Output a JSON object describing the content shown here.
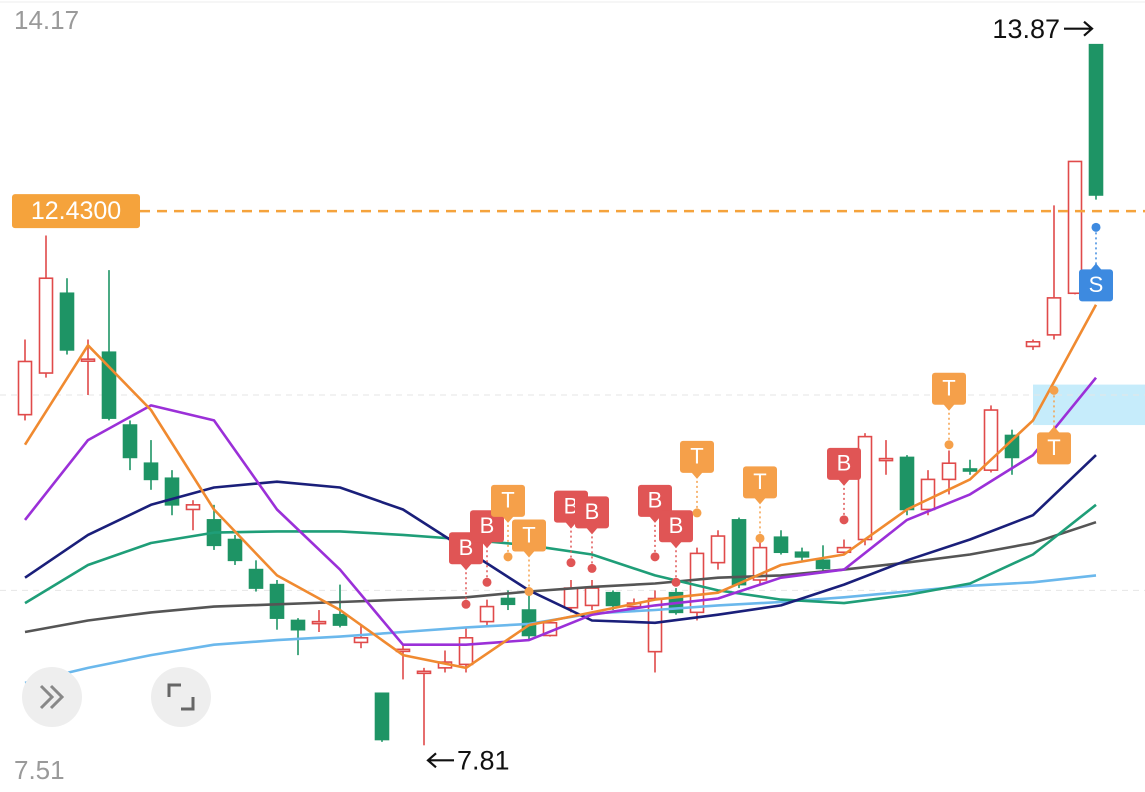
{
  "chart_data": {
    "type": "candlestick",
    "ylim": [
      7.51,
      14.17
    ],
    "up_color": "#e04a4a",
    "down_color": "#1e9465",
    "candles": {
      "open": [
        10.67,
        11.03,
        11.72,
        11.14,
        11.21,
        10.58,
        10.25,
        10.12,
        9.85,
        9.76,
        9.59,
        9.33,
        9.2,
        8.89,
        8.87,
        8.94,
        8.7,
        8.26,
        8.63,
        8.44,
        8.48,
        8.51,
        8.88,
        9.08,
        8.98,
        8.76,
        9.0,
        9.02,
        9.13,
        9.01,
        8.62,
        9.13,
        8.96,
        9.39,
        9.76,
        9.24,
        9.61,
        9.48,
        9.41,
        9.48,
        9.59,
        10.28,
        10.3,
        9.85,
        10.11,
        10.2,
        10.19,
        10.49,
        11.26,
        11.36,
        11.72,
        13.87
      ],
      "high": [
        11.32,
        12.22,
        11.85,
        11.32,
        11.92,
        10.62,
        10.45,
        10.19,
        9.93,
        9.89,
        9.63,
        9.41,
        9.24,
        8.91,
        8.98,
        9.2,
        8.85,
        8.26,
        8.68,
        8.48,
        8.63,
        8.83,
        9.07,
        9.15,
        9.11,
        8.89,
        9.24,
        9.24,
        9.15,
        9.08,
        9.15,
        9.17,
        9.52,
        9.67,
        9.78,
        9.59,
        9.67,
        9.52,
        9.54,
        9.59,
        10.51,
        10.45,
        10.32,
        10.19,
        10.36,
        10.28,
        10.75,
        10.54,
        11.32,
        12.48,
        12.86,
        13.87
      ],
      "low": [
        10.62,
        10.99,
        11.19,
        10.84,
        10.62,
        10.19,
        10.02,
        9.8,
        9.67,
        9.5,
        9.37,
        9.14,
        8.81,
        8.59,
        8.79,
        8.83,
        8.65,
        7.84,
        8.38,
        7.81,
        8.44,
        8.44,
        8.83,
        8.98,
        8.72,
        8.75,
        8.96,
        8.98,
        8.98,
        8.98,
        8.44,
        8.94,
        8.89,
        9.33,
        9.17,
        9.2,
        9.46,
        9.41,
        9.3,
        9.46,
        9.54,
        10.15,
        9.8,
        9.8,
        9.98,
        10.15,
        10.17,
        10.15,
        11.23,
        11.32,
        11.71,
        12.53
      ],
      "close": [
        11.13,
        11.85,
        11.23,
        11.15,
        10.64,
        10.3,
        10.11,
        9.89,
        9.89,
        9.54,
        9.41,
        9.17,
        8.91,
        8.81,
        8.88,
        8.85,
        8.74,
        7.86,
        8.64,
        8.45,
        8.53,
        8.74,
        9.01,
        9.03,
        8.76,
        8.87,
        9.17,
        9.17,
        9.02,
        9.04,
        9.08,
        8.96,
        9.47,
        9.62,
        9.2,
        9.52,
        9.48,
        9.44,
        9.34,
        9.52,
        10.48,
        10.29,
        9.85,
        10.11,
        10.25,
        10.19,
        10.71,
        10.3,
        11.3,
        11.68,
        12.86,
        12.57
      ]
    },
    "lines": [
      {
        "color": "#6bb8ec",
        "x": [
          0,
          3,
          6,
          9,
          12,
          15,
          18,
          21,
          24,
          27,
          30,
          33,
          36,
          39,
          42,
          45,
          48,
          51
        ],
        "values": [
          8.35,
          8.48,
          8.59,
          8.68,
          8.72,
          8.75,
          8.79,
          8.83,
          8.86,
          8.95,
          8.98,
          9.02,
          9.05,
          9.09,
          9.14,
          9.19,
          9.22,
          9.28
        ]
      },
      {
        "color": "#555555",
        "x": [
          0,
          3,
          6,
          9,
          12,
          15,
          18,
          21,
          24,
          27,
          30,
          33,
          36,
          39,
          42,
          45,
          48,
          51
        ],
        "values": [
          8.79,
          8.89,
          8.96,
          9.01,
          9.03,
          9.05,
          9.07,
          9.09,
          9.14,
          9.18,
          9.21,
          9.26,
          9.28,
          9.33,
          9.39,
          9.46,
          9.56,
          9.74
        ]
      },
      {
        "color": "#1f9e78",
        "x": [
          0,
          3,
          6,
          9,
          12,
          15,
          18,
          21,
          24,
          27,
          30,
          33,
          36,
          39,
          42,
          45,
          48,
          51
        ],
        "values": [
          9.04,
          9.37,
          9.56,
          9.65,
          9.66,
          9.66,
          9.63,
          9.59,
          9.54,
          9.46,
          9.28,
          9.15,
          9.07,
          9.04,
          9.11,
          9.21,
          9.46,
          9.89
        ]
      },
      {
        "color": "#1a1f7a",
        "x": [
          0,
          3,
          6,
          9,
          12,
          15,
          18,
          21,
          24,
          27,
          30,
          33,
          36,
          39,
          42,
          45,
          48,
          51
        ],
        "values": [
          9.26,
          9.63,
          9.89,
          10.04,
          10.09,
          10.04,
          9.85,
          9.5,
          9.15,
          8.89,
          8.87,
          8.94,
          9.02,
          9.2,
          9.41,
          9.59,
          9.8,
          10.32
        ]
      },
      {
        "color": "#9b30d8",
        "x": [
          0,
          3,
          6,
          9,
          12,
          15,
          18,
          21,
          24,
          27,
          30,
          33,
          36,
          39,
          42,
          45,
          48,
          51
        ],
        "values": [
          9.76,
          10.45,
          10.75,
          10.62,
          9.85,
          9.33,
          8.68,
          8.68,
          8.72,
          8.94,
          9.02,
          9.08,
          9.26,
          9.33,
          9.76,
          9.98,
          10.32,
          10.99
        ]
      },
      {
        "color": "#f08a30",
        "x": [
          0,
          3,
          6,
          9,
          12,
          15,
          18,
          21,
          24,
          27,
          30,
          33,
          36,
          39,
          42,
          45,
          48,
          51
        ],
        "values": [
          10.41,
          11.27,
          10.71,
          9.85,
          9.28,
          8.98,
          8.59,
          8.48,
          8.85,
          8.96,
          9.07,
          9.13,
          9.37,
          9.46,
          9.85,
          10.11,
          10.62,
          11.62
        ]
      }
    ],
    "grid": [
      10.84,
      9.15
    ],
    "zone": {
      "color": "#c6ecfb",
      "from": 10.58,
      "to": 10.93
    },
    "price_line": {
      "value": 12.43,
      "label": "12.4300",
      "color": "#f5a33c"
    },
    "high_marker": {
      "index": 51,
      "value": 13.87
    },
    "low_marker": {
      "index": 19,
      "value": 7.81
    },
    "signal_colors": {
      "B": "#e05555",
      "T": "#f5a04a",
      "S": "#3d8ae0"
    },
    "signals": [
      {
        "label": "B",
        "index": 21,
        "value": 9.03,
        "position": "above"
      },
      {
        "label": "B",
        "index": 22,
        "value": 9.22,
        "position": "above"
      },
      {
        "label": "T",
        "index": 23,
        "value": 9.44,
        "position": "above"
      },
      {
        "label": "T",
        "index": 24,
        "value": 9.14,
        "position": "above"
      },
      {
        "label": "B",
        "index": 26,
        "value": 9.39,
        "position": "above"
      },
      {
        "label": "B",
        "index": 27,
        "value": 9.34,
        "position": "above"
      },
      {
        "label": "B",
        "index": 30,
        "value": 9.44,
        "position": "above"
      },
      {
        "label": "B",
        "index": 31,
        "value": 9.22,
        "position": "above"
      },
      {
        "label": "T",
        "index": 32,
        "value": 9.82,
        "position": "above"
      },
      {
        "label": "T",
        "index": 35,
        "value": 9.6,
        "position": "above"
      },
      {
        "label": "B",
        "index": 39,
        "value": 9.76,
        "position": "above"
      },
      {
        "label": "T",
        "index": 44,
        "value": 10.41,
        "position": "above"
      },
      {
        "label": "T",
        "index": 49,
        "value": 10.88,
        "position": "below"
      },
      {
        "label": "S",
        "index": 51,
        "value": 12.29,
        "position": "below"
      }
    ]
  }
}
